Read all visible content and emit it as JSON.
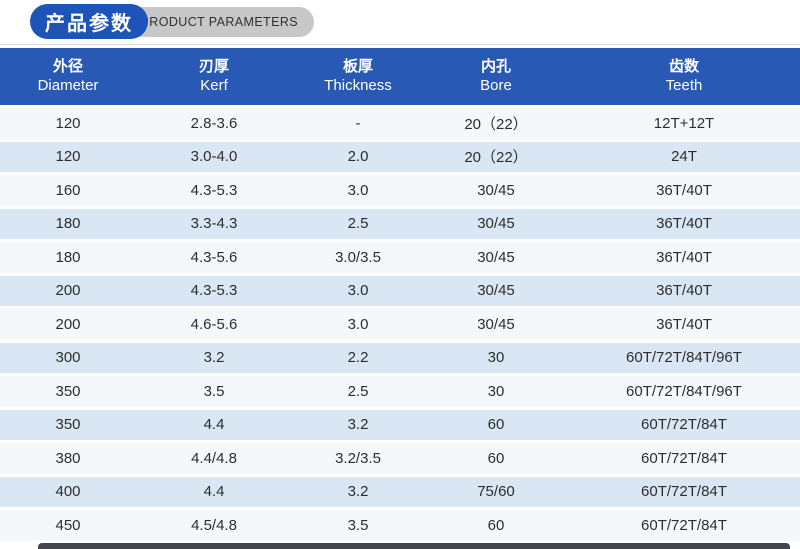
{
  "title_badge": {
    "zh": "产品参数",
    "en": "PRODUCT PARAMETERS",
    "badge_blue": "#1e54b7",
    "badge_gray": "#c8c8c8"
  },
  "colors": {
    "header_bg": "#2759b5",
    "row_light": "#f5f8fb",
    "row_alt": "#d9e7f4",
    "cell_text": "#2d2d2d",
    "footer_bar": "#43464c"
  },
  "table": {
    "columns": [
      {
        "zh": "外径",
        "en": "Diameter"
      },
      {
        "zh": "刃厚",
        "en": "Kerf"
      },
      {
        "zh": "板厚",
        "en": "Thickness"
      },
      {
        "zh": "内孔",
        "en": "Bore"
      },
      {
        "zh": "齿数",
        "en": "Teeth"
      }
    ],
    "rows": [
      [
        "120",
        "2.8-3.6",
        "-",
        "20（22）",
        "12T+12T"
      ],
      [
        "120",
        "3.0-4.0",
        "2.0",
        "20（22）",
        "24T"
      ],
      [
        "160",
        "4.3-5.3",
        "3.0",
        "30/45",
        "36T/40T"
      ],
      [
        "180",
        "3.3-4.3",
        "2.5",
        "30/45",
        "36T/40T"
      ],
      [
        "180",
        "4.3-5.6",
        "3.0/3.5",
        "30/45",
        "36T/40T"
      ],
      [
        "200",
        "4.3-5.3",
        "3.0",
        "30/45",
        "36T/40T"
      ],
      [
        "200",
        "4.6-5.6",
        "3.0",
        "30/45",
        "36T/40T"
      ],
      [
        "300",
        "3.2",
        "2.2",
        "30",
        "60T/72T/84T/96T"
      ],
      [
        "350",
        "3.5",
        "2.5",
        "30",
        "60T/72T/84T/96T"
      ],
      [
        "350",
        "4.4",
        "3.2",
        "60",
        "60T/72T/84T"
      ],
      [
        "380",
        "4.4/4.8",
        "3.2/3.5",
        "60",
        "60T/72T/84T"
      ],
      [
        "400",
        "4.4",
        "3.2",
        "75/60",
        "60T/72T/84T"
      ],
      [
        "450",
        "4.5/4.8",
        "3.5",
        "60",
        "60T/72T/84T"
      ]
    ]
  }
}
